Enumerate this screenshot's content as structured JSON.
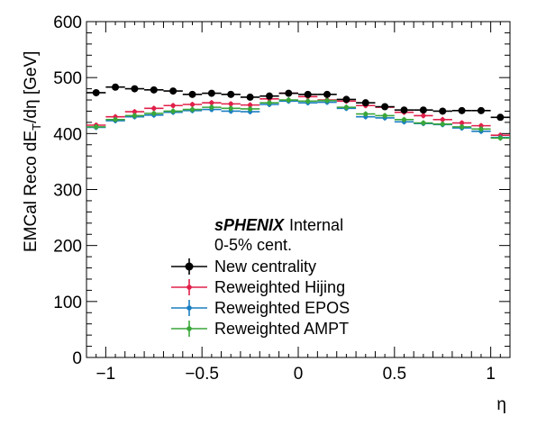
{
  "chart_data": {
    "type": "scatter",
    "title": "",
    "xlabel": "η",
    "ylabel_parts": {
      "main": "EMCal Reco dE",
      "sub": "T",
      "tail": "/dη [GeV]"
    },
    "xlim": [
      -1.1,
      1.1
    ],
    "ylim": [
      0,
      600
    ],
    "x_ticks": [
      -1,
      -0.5,
      0,
      0.5,
      1
    ],
    "x_tick_labels": [
      "−1",
      "−0.5",
      "0",
      "0.5",
      "1"
    ],
    "y_ticks": [
      0,
      100,
      200,
      300,
      400,
      500,
      600
    ],
    "y_tick_labels": [
      "0",
      "100",
      "200",
      "300",
      "400",
      "500",
      "600"
    ],
    "bin_half_width": 0.05,
    "x": [
      -1.05,
      -0.95,
      -0.85,
      -0.75,
      -0.65,
      -0.55,
      -0.45,
      -0.35,
      -0.25,
      -0.15,
      -0.05,
      0.05,
      0.15,
      0.25,
      0.35,
      0.45,
      0.55,
      0.65,
      0.75,
      0.85,
      0.95,
      1.05
    ],
    "series": [
      {
        "name": "New centrality",
        "color": "#000000",
        "values": [
          473,
          483,
          480,
          478,
          476,
          470,
          472,
          470,
          465,
          467,
          472,
          470,
          470,
          461,
          455,
          448,
          442,
          442,
          440,
          441,
          441,
          429
        ]
      },
      {
        "name": "Reweighted Hijing",
        "color": "#e0204a",
        "values": [
          415,
          430,
          439,
          445,
          450,
          452,
          455,
          453,
          451,
          462,
          472,
          466,
          460,
          458,
          450,
          447,
          438,
          432,
          425,
          419,
          414,
          397
        ]
      },
      {
        "name": "Reweighted EPOS",
        "color": "#1a7fc1",
        "values": [
          411,
          423,
          430,
          433,
          438,
          441,
          443,
          440,
          439,
          452,
          458,
          455,
          456,
          445,
          430,
          428,
          421,
          418,
          416,
          410,
          404,
          393
        ]
      },
      {
        "name": "Reweighted AMPT",
        "color": "#3aa63a",
        "values": [
          412,
          425,
          432,
          436,
          440,
          443,
          447,
          445,
          444,
          455,
          460,
          458,
          459,
          447,
          435,
          432,
          425,
          419,
          417,
          412,
          408,
          392
        ]
      }
    ],
    "legend": {
      "brand": "sPHENIX",
      "status": "Internal",
      "centrality": "0-5% cent.",
      "placement": "bottom-center"
    },
    "grid": false
  }
}
